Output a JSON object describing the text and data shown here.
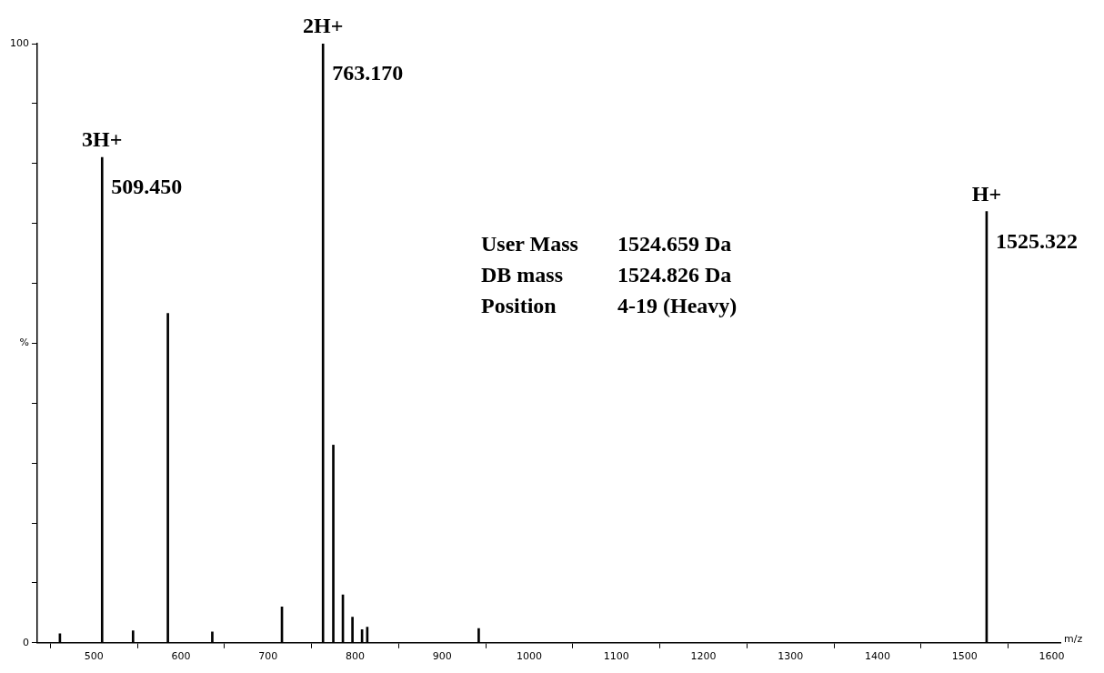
{
  "chart_data": {
    "type": "bar",
    "xlabel": "m/z",
    "x": [
      461,
      509.45,
      545,
      585,
      636,
      716,
      763.17,
      775,
      786,
      797,
      808,
      814,
      942,
      1525.322
    ],
    "series": [
      {
        "color": "#000000",
        "values": [
          1.5,
          81,
          2,
          55,
          1.8,
          6,
          100,
          33,
          8,
          4.3,
          2.2,
          2.6,
          2.4,
          72
        ]
      }
    ],
    "xlim": [
      435,
      1610
    ],
    "xticks": [
      500,
      600,
      700,
      800,
      900,
      1000,
      1100,
      1200,
      1300,
      1400,
      1500,
      1600
    ],
    "ylim": [
      0,
      100
    ],
    "yticks": [
      0,
      {
        "value": 10,
        "label": null
      },
      {
        "value": 20,
        "label": null
      },
      {
        "value": 30,
        "label": null
      },
      {
        "value": 40,
        "label": null
      },
      {
        "value": 50,
        "label": "%"
      },
      {
        "value": 60,
        "label": null
      },
      {
        "value": 70,
        "label": null
      },
      {
        "value": 80,
        "label": null
      },
      {
        "value": 90,
        "label": null
      },
      100
    ],
    "grid": false,
    "legend": false,
    "annotations": [
      {
        "text": "3H+",
        "x": 509.45,
        "y": 81
      },
      {
        "text": "509.450",
        "x": 509.45,
        "y": 81
      },
      {
        "text": "2H+",
        "x": 763.17,
        "y": 100
      },
      {
        "text": "763.170",
        "x": 763.17,
        "y": 100
      },
      {
        "text": "H+",
        "x": 1525.322,
        "y": 72
      },
      {
        "text": "1525.322",
        "x": 1525.322,
        "y": 72
      },
      "User Mass\t1524.659 Da",
      "DB mass\t1524.826 Da",
      "Position\t4-19 (Heavy)"
    ]
  }
}
